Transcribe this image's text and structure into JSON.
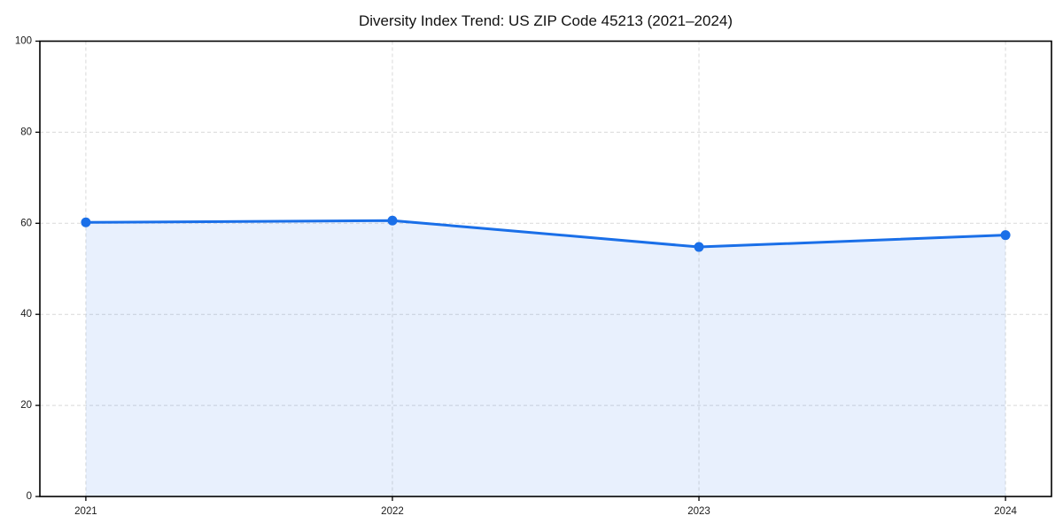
{
  "chart_data": {
    "type": "line",
    "title": "Diversity Index Trend: US ZIP Code 45213 (2021–2024)",
    "x": [
      2021,
      2022,
      2023,
      2024
    ],
    "xtick_labels": [
      "2021",
      "2022",
      "2023",
      "2024"
    ],
    "series": [
      {
        "name": "Diversity Index",
        "values": [
          60.2,
          60.6,
          54.8,
          57.4
        ]
      }
    ],
    "xlabel": "",
    "ylabel": "",
    "xlim": [
      2020.85,
      2024.15
    ],
    "ylim": [
      0,
      100
    ],
    "yticks": [
      0,
      20,
      40,
      60,
      80,
      100
    ],
    "xticks": [
      2021,
      2022,
      2023,
      2024
    ],
    "grid": true,
    "grid_style": "dashed",
    "legend_position": "none",
    "area_fill": true,
    "marker": "circle",
    "colors": {
      "line": "#1a6fe8",
      "marker": "#1a6fe8",
      "fill": "rgba(26,111,232,0.10)",
      "gridline": "#d9d9d9",
      "spine": "#000000",
      "tick_label": "#1a1a1a",
      "title": "#111111",
      "background": "#ffffff"
    }
  }
}
